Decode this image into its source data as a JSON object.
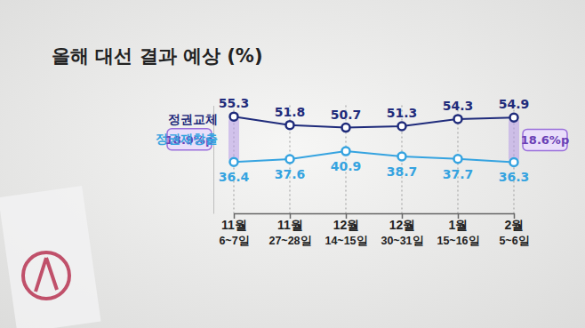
{
  "chart_data": {
    "type": "line",
    "title": "올해 대선 결과 예상 (%)",
    "categories": [
      "11월 6~7일",
      "11월 27~28일",
      "12월 14~15일",
      "12월 30~31일",
      "1월 15~16일",
      "2월 5~6일"
    ],
    "series": [
      {
        "name": "정권교체",
        "color": "#1f2b7b",
        "marker": "circle",
        "line_style": "solid",
        "values": [
          55.3,
          51.8,
          50.7,
          51.3,
          54.3,
          54.9
        ]
      },
      {
        "name": "정권재창출",
        "color": "#35a3e0",
        "marker": "circle",
        "line_style": "solid",
        "values": [
          36.4,
          37.6,
          40.9,
          38.7,
          37.7,
          36.3
        ]
      }
    ],
    "ylim": [
      15,
      60
    ],
    "tick_labels": "x",
    "data_labels": true,
    "annotations": [
      {
        "text": "18.9%p",
        "category": "11월 6~7일"
      },
      {
        "text": "18.6%p",
        "category": "2월 5~6일"
      }
    ]
  }
}
